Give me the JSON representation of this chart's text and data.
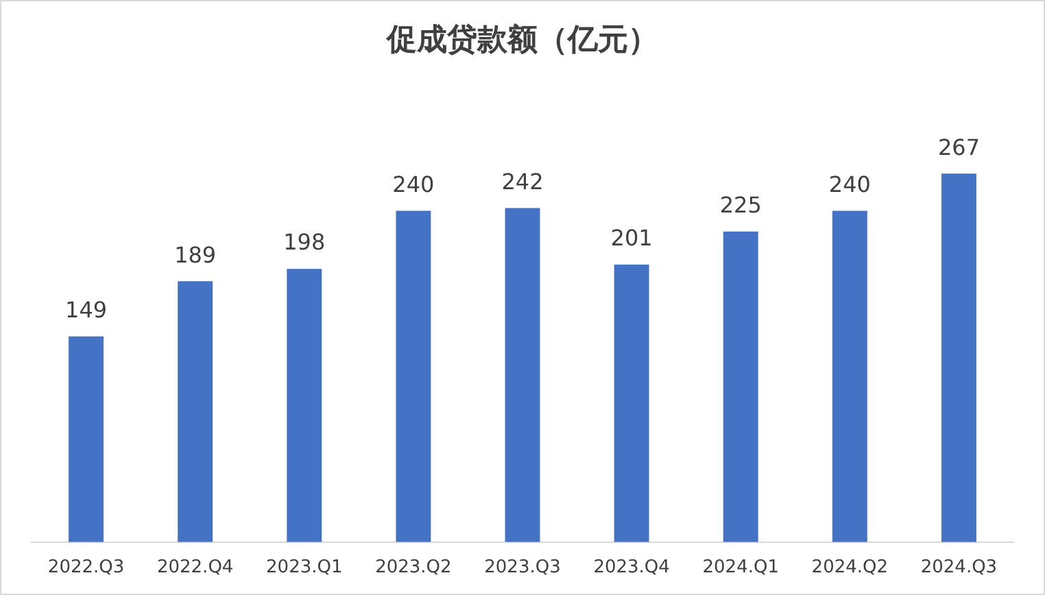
{
  "chart_data": {
    "type": "bar",
    "title": "促成贷款额（亿元）",
    "categories": [
      "2022.Q3",
      "2022.Q4",
      "2023.Q1",
      "2023.Q2",
      "2023.Q3",
      "2023.Q4",
      "2024.Q1",
      "2024.Q2",
      "2024.Q3"
    ],
    "values": [
      149,
      189,
      198,
      240,
      242,
      201,
      225,
      240,
      267
    ],
    "color": "#4472c4",
    "data_labels": true,
    "grid": false,
    "legend": false
  }
}
